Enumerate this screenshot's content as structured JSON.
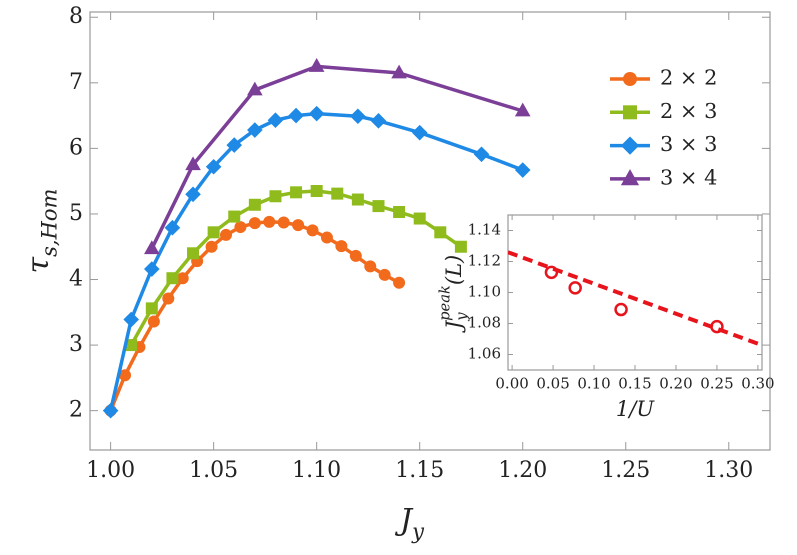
{
  "chart_data": [
    {
      "type": "line",
      "xlabel": {
        "base": "J",
        "sub": "y"
      },
      "ylabel": {
        "base": "τ",
        "sub": "s,Hom"
      },
      "xlim": [
        0.99,
        1.32
      ],
      "ylim": [
        1.4,
        8.08
      ],
      "xticks": [
        {
          "value": 1.0,
          "label": "1.00"
        },
        {
          "value": 1.05,
          "label": "1.05"
        },
        {
          "value": 1.1,
          "label": "1.10"
        },
        {
          "value": 1.15,
          "label": "1.15"
        },
        {
          "value": 1.2,
          "label": "1.20"
        },
        {
          "value": 1.25,
          "label": "1.25"
        },
        {
          "value": 1.3,
          "label": "1.30"
        }
      ],
      "yticks": [
        2,
        3,
        4,
        5,
        6,
        7,
        8
      ],
      "legend": "upper right",
      "series": [
        {
          "name": "2 × 2",
          "color": "#f26b1d",
          "marker": "circle",
          "x": [
            1.0,
            1.007,
            1.014,
            1.021,
            1.028,
            1.035,
            1.042,
            1.049,
            1.056,
            1.063,
            1.07,
            1.077,
            1.084,
            1.091,
            1.098,
            1.105,
            1.112,
            1.119,
            1.126,
            1.133,
            1.14
          ],
          "values": [
            2.0,
            2.54,
            2.97,
            3.36,
            3.71,
            4.02,
            4.28,
            4.5,
            4.68,
            4.8,
            4.86,
            4.88,
            4.87,
            4.83,
            4.75,
            4.64,
            4.51,
            4.36,
            4.2,
            4.07,
            3.95
          ]
        },
        {
          "name": "2 × 3",
          "color": "#8fbc1c",
          "marker": "square",
          "x": [
            1.01,
            1.02,
            1.03,
            1.04,
            1.05,
            1.06,
            1.07,
            1.08,
            1.09,
            1.1,
            1.11,
            1.12,
            1.13,
            1.14,
            1.15,
            1.16,
            1.17
          ],
          "values": [
            3.0,
            3.56,
            4.02,
            4.4,
            4.72,
            4.96,
            5.14,
            5.27,
            5.33,
            5.35,
            5.31,
            5.22,
            5.12,
            5.03,
            4.93,
            4.72,
            4.5
          ]
        },
        {
          "name": "3 × 3",
          "color": "#1f8ae6",
          "marker": "diamond",
          "x": [
            1.0,
            1.01,
            1.02,
            1.03,
            1.04,
            1.05,
            1.06,
            1.07,
            1.08,
            1.09,
            1.1,
            1.12,
            1.13,
            1.15,
            1.18,
            1.2
          ],
          "values": [
            2.0,
            3.39,
            4.16,
            4.79,
            5.3,
            5.72,
            6.05,
            6.28,
            6.43,
            6.5,
            6.53,
            6.49,
            6.42,
            6.24,
            5.91,
            5.67
          ]
        },
        {
          "name": "3 × 4",
          "color": "#7c3f98",
          "marker": "triangle",
          "x": [
            1.02,
            1.04,
            1.07,
            1.1,
            1.14,
            1.2
          ],
          "values": [
            4.47,
            5.75,
            6.89,
            7.25,
            7.15,
            6.57
          ]
        }
      ]
    },
    {
      "type": "scatter",
      "xlabel": {
        "base": "1/U"
      },
      "ylabel": {
        "base": "J",
        "sub": "y",
        "sup": "peak",
        "rest": "(L)"
      },
      "xlim": [
        -0.005,
        0.305
      ],
      "ylim": [
        1.05,
        1.15
      ],
      "xticks": [
        {
          "value": 0,
          "label": "0.00"
        },
        {
          "value": 0.05,
          "label": "0.05"
        },
        {
          "value": 0.1,
          "label": "0.10"
        },
        {
          "value": 0.15,
          "label": "0.15"
        },
        {
          "value": 0.2,
          "label": "0.20"
        },
        {
          "value": 0.25,
          "label": "0.25"
        },
        {
          "value": 0.3,
          "label": "0.30"
        }
      ],
      "yticks": [
        1.06,
        1.08,
        {
          "value": 1.1,
          "label": "1.10"
        },
        1.12,
        1.14
      ],
      "series": [
        {
          "color": "#e8141c",
          "marker": "open-circle",
          "x": [
            0.048,
            0.077,
            0.133,
            0.25
          ],
          "values": [
            1.113,
            1.103,
            1.089,
            1.078
          ]
        },
        {
          "color": "#e8141c",
          "style": "dashed",
          "x": [
            -0.005,
            0.3
          ],
          "values": [
            1.126,
            1.067
          ]
        }
      ]
    }
  ]
}
